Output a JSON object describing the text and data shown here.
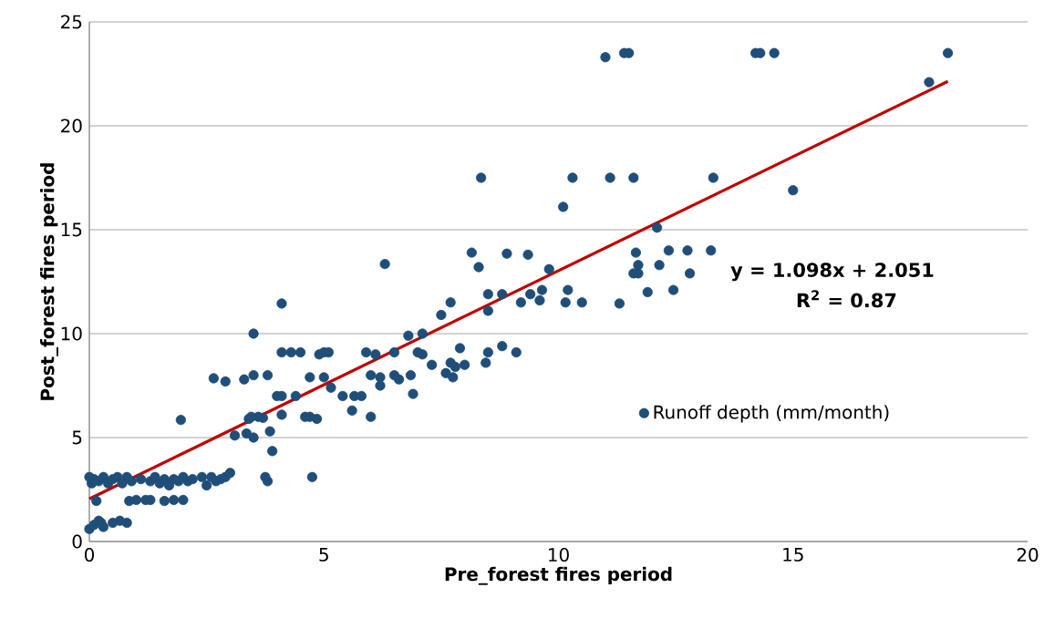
{
  "chart_data": {
    "type": "scatter",
    "xlabel": "Pre_forest fires period",
    "ylabel": "Post_forest fires period",
    "annotations": [
      "y = 1.098x + 2.051",
      "R$^{2}$ = 0.87"
    ],
    "xlim": [
      0,
      20
    ],
    "ylim": [
      0,
      25
    ],
    "xticks": [
      0,
      5,
      10,
      15,
      20
    ],
    "yticks": [
      0,
      5,
      10,
      15,
      20,
      25
    ],
    "grid": "y",
    "legend": "right",
    "series": [
      {
        "name": "Runoff depth (mm/month)",
        "marker": "circle",
        "color": "#1f4e79",
        "x": [
          0,
          0.05,
          0.1,
          0.2,
          0.3,
          0.4,
          0.5,
          0.6,
          0.7,
          0.8,
          0.9,
          1.1,
          1.3,
          1.4,
          1.5,
          1.6,
          1.7,
          1.8,
          1.9,
          2.0,
          2.1,
          2.2,
          2.4,
          2.5,
          2.6,
          2.7,
          2.8,
          2.9,
          3.0,
          3.1,
          0.85,
          1.0,
          1.2,
          1.6,
          1.8,
          2.0,
          1.3,
          0.15,
          0.0,
          0.1,
          0.2,
          0.3,
          0.5,
          0.65,
          0.8,
          0.25,
          1.95,
          2.65,
          2.9,
          3.3,
          3.35,
          3.4,
          3.45,
          3.5,
          3.5,
          3.6,
          3.7,
          3.75,
          3.8,
          3.5,
          3.8,
          3.85,
          3.9,
          4.0,
          4.1,
          4.1,
          4.1,
          4.1,
          4.3,
          4.4,
          4.5,
          4.6,
          4.7,
          4.7,
          4.75,
          4.85,
          4.9,
          5.0,
          5.0,
          5.1,
          5.15,
          5.4,
          5.6,
          5.65,
          5.8,
          5.9,
          6.0,
          6.0,
          6.1,
          6.2,
          6.2,
          6.3,
          6.5,
          6.5,
          6.6,
          6.8,
          6.85,
          6.9,
          7.0,
          7.1,
          7.1,
          7.3,
          7.5,
          7.6,
          7.7,
          7.7,
          7.75,
          7.8,
          7.9,
          8.0,
          8.15,
          8.3,
          8.35,
          8.5,
          8.5,
          8.45,
          8.5,
          8.8,
          8.8,
          8.9,
          9.1,
          9.2,
          9.35,
          9.4,
          9.6,
          9.65,
          9.8,
          10.1,
          10.15,
          10.2,
          10.3,
          10.5,
          11.0,
          11.1,
          11.3,
          11.4,
          11.5,
          11.6,
          11.65,
          11.6,
          11.7,
          11.7,
          11.9,
          12.1,
          12.15,
          12.35,
          12.45,
          12.75,
          12.8,
          13.25,
          13.3,
          14.2,
          14.3,
          14.6,
          15.0,
          17.9,
          18.3
        ],
        "values": [
          3.1,
          2.8,
          3.0,
          2.9,
          3.1,
          2.8,
          3.0,
          3.1,
          2.8,
          3.1,
          2.9,
          3.0,
          2.9,
          3.1,
          2.8,
          3.0,
          2.7,
          3.0,
          2.9,
          3.1,
          2.9,
          3.0,
          3.1,
          2.7,
          3.1,
          2.9,
          3.0,
          3.1,
          3.3,
          5.1,
          1.95,
          2.0,
          2.0,
          1.95,
          2.0,
          2.0,
          2.0,
          1.95,
          0.6,
          0.8,
          1.0,
          0.7,
          0.9,
          1.0,
          0.9,
          0.9,
          5.85,
          7.85,
          7.7,
          7.8,
          5.2,
          5.9,
          6.0,
          10.0,
          5.0,
          6.0,
          5.95,
          3.1,
          2.9,
          8.0,
          8.0,
          5.3,
          4.35,
          7.0,
          7.0,
          6.1,
          9.1,
          11.45,
          9.1,
          7.0,
          9.1,
          6.0,
          7.9,
          6.0,
          3.1,
          5.9,
          9.0,
          7.9,
          9.1,
          9.1,
          7.4,
          7.0,
          6.3,
          7.0,
          7.0,
          9.1,
          6.0,
          8.0,
          9.0,
          7.9,
          7.5,
          13.35,
          8.0,
          9.1,
          7.8,
          9.9,
          8.0,
          7.1,
          9.1,
          9.0,
          10.0,
          8.5,
          10.9,
          8.1,
          11.5,
          8.6,
          7.9,
          8.4,
          9.3,
          8.5,
          13.9,
          13.2,
          17.5,
          11.9,
          11.1,
          8.6,
          9.1,
          9.4,
          11.9,
          13.85,
          9.1,
          11.5,
          13.8,
          11.9,
          11.6,
          12.1,
          13.1,
          16.1,
          11.5,
          12.1,
          17.5,
          11.5,
          23.3,
          17.5,
          11.45,
          23.5,
          23.5,
          17.5,
          13.9,
          12.9,
          13.3,
          12.9,
          12.0,
          15.1,
          13.3,
          14.0,
          12.1,
          14.0,
          12.9,
          14.0,
          17.5,
          23.5,
          23.5,
          23.5,
          16.9,
          22.1,
          23.5
        ]
      },
      {
        "type": "line",
        "color": "#c00000",
        "x": [
          0,
          18.3
        ],
        "values": [
          2.05,
          22.14
        ]
      }
    ]
  }
}
